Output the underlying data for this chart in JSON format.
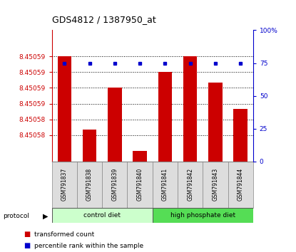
{
  "title": "GDS4812 / 1387950_at",
  "samples": [
    "GSM791837",
    "GSM791838",
    "GSM791839",
    "GSM791840",
    "GSM791841",
    "GSM791842",
    "GSM791843",
    "GSM791844"
  ],
  "bar_values": [
    8.450595,
    8.450581,
    8.450589,
    8.450577,
    8.450592,
    8.450595,
    8.45059,
    8.450585
  ],
  "percentile_values": [
    75,
    75,
    75,
    75,
    75,
    75,
    75,
    75
  ],
  "ymin": 8.450575,
  "ymax": 8.4506,
  "yticks": [
    8.45058,
    8.450583,
    8.450586,
    8.450589,
    8.450592,
    8.450595
  ],
  "ytick_labels": [
    "8.45058",
    "8.45058",
    "8.45059",
    "8.45059",
    "8.45059",
    "8.45059"
  ],
  "right_yticks": [
    0,
    25,
    50,
    75,
    100
  ],
  "right_ytick_labels": [
    "0",
    "25",
    "50",
    "75",
    "100%"
  ],
  "protocol_groups": [
    {
      "label": "control diet",
      "start": 0,
      "end": 4,
      "color": "#ccffcc"
    },
    {
      "label": "high phosphate diet",
      "start": 4,
      "end": 8,
      "color": "#55dd55"
    }
  ],
  "bar_color": "#cc0000",
  "percentile_color": "#0000cc",
  "grid_color": "#000000",
  "left_axis_color": "#cc0000",
  "right_axis_color": "#0000cc",
  "legend_items": [
    {
      "label": "transformed count",
      "color": "#cc0000"
    },
    {
      "label": "percentile rank within the sample",
      "color": "#0000cc"
    }
  ]
}
